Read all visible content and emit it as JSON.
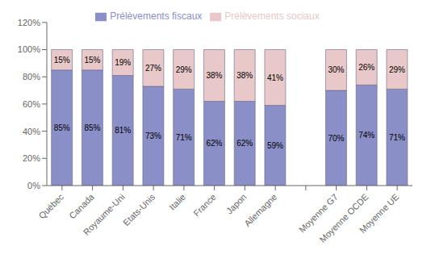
{
  "chart_data": {
    "type": "bar",
    "stacked": true,
    "data_labels": true,
    "grid": false,
    "legend": "top",
    "categories": [
      "Québec",
      "Canada",
      "Royaume-Uni",
      "Etats-Unis",
      "Italie",
      "France",
      "Japon",
      "Allemagne",
      null,
      "Moyenne G7",
      "Moyenne OCDE",
      "Moyenne UE"
    ],
    "series": [
      {
        "name": "Prélèvements fiscaux",
        "color": "#8B8FC8",
        "values": [
          85,
          85,
          81,
          73,
          71,
          62,
          62,
          59,
          0,
          70,
          74,
          71
        ],
        "value_labels": [
          "85%",
          "85%",
          "81%",
          "73%",
          "71%",
          "62%",
          "62%",
          "59%",
          null,
          "70%",
          "74%",
          "71%"
        ]
      },
      {
        "name": "Prélèvements sociaux",
        "color": "#E8C8C8",
        "values": [
          15,
          15,
          19,
          27,
          29,
          38,
          38,
          41,
          0,
          30,
          26,
          29
        ],
        "value_labels": [
          "15%",
          "15%",
          "19%",
          "27%",
          "29%",
          "38%",
          "38%",
          "41%",
          null,
          "30%",
          "26%",
          "29%"
        ]
      }
    ],
    "ylim": [
      0,
      120
    ],
    "yticks": [
      {
        "value": 0,
        "label": "0%"
      },
      {
        "value": 20,
        "label": "20%"
      },
      {
        "value": 40,
        "label": "40%"
      },
      {
        "value": 60,
        "label": "60%"
      },
      {
        "value": 80,
        "label": "80%"
      },
      {
        "value": 100,
        "label": "100%"
      },
      {
        "value": 120,
        "label": "120%"
      }
    ]
  }
}
